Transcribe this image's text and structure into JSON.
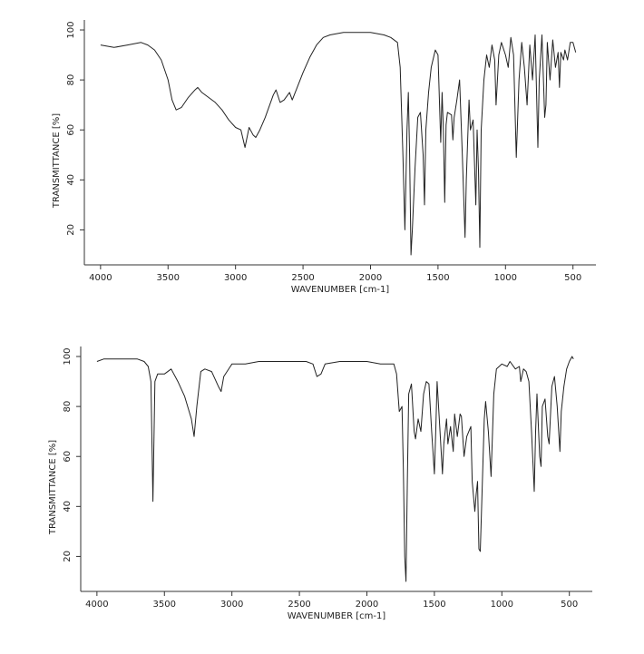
{
  "chart_data": [
    {
      "type": "line",
      "x_label": "WAVENUMBER [cm-1]",
      "y_label": "TRANSMITTANCE [%]",
      "xlim": [
        4120,
        330
      ],
      "ylim": [
        6,
        104
      ],
      "xticks": [
        4000,
        3500,
        3000,
        2500,
        2000,
        1500,
        1000,
        500
      ],
      "yticks": [
        20,
        40,
        60,
        80,
        100
      ],
      "color": "#222222",
      "x": [
        4000,
        3900,
        3800,
        3700,
        3650,
        3600,
        3550,
        3500,
        3470,
        3440,
        3400,
        3350,
        3300,
        3280,
        3250,
        3200,
        3150,
        3100,
        3050,
        3000,
        2960,
        2930,
        2900,
        2870,
        2850,
        2820,
        2780,
        2720,
        2700,
        2670,
        2640,
        2600,
        2580,
        2550,
        2500,
        2450,
        2400,
        2350,
        2300,
        2200,
        2100,
        2000,
        1900,
        1850,
        1800,
        1780,
        1760,
        1745,
        1730,
        1720,
        1710,
        1700,
        1690,
        1670,
        1650,
        1630,
        1610,
        1600,
        1590,
        1570,
        1550,
        1520,
        1500,
        1480,
        1470,
        1460,
        1450,
        1440,
        1430,
        1400,
        1390,
        1380,
        1360,
        1340,
        1320,
        1300,
        1290,
        1270,
        1260,
        1240,
        1220,
        1210,
        1200,
        1190,
        1180,
        1160,
        1140,
        1120,
        1100,
        1080,
        1070,
        1050,
        1030,
        1000,
        980,
        960,
        940,
        920,
        900,
        880,
        860,
        840,
        820,
        800,
        780,
        760,
        750,
        730,
        710,
        700,
        690,
        670,
        650,
        630,
        610,
        600,
        590,
        570,
        560,
        540,
        520,
        500,
        480
      ],
      "values": [
        94,
        93,
        94,
        95,
        94,
        92,
        88,
        80,
        72,
        68,
        69,
        73,
        76,
        77,
        75,
        73,
        71,
        68,
        64,
        61,
        60,
        53,
        61,
        58,
        57,
        60,
        65,
        74,
        76,
        71,
        72,
        75,
        72,
        76,
        83,
        89,
        94,
        97,
        98,
        99,
        99,
        99,
        98,
        97,
        95,
        85,
        50,
        20,
        60,
        75,
        50,
        10,
        20,
        45,
        65,
        67,
        50,
        30,
        60,
        75,
        85,
        92,
        90,
        55,
        75,
        60,
        31,
        62,
        67,
        66,
        56,
        65,
        72,
        80,
        50,
        17,
        40,
        72,
        60,
        64,
        30,
        60,
        44,
        13,
        60,
        80,
        90,
        85,
        94,
        88,
        70,
        90,
        95,
        90,
        85,
        97,
        90,
        49,
        80,
        95,
        85,
        70,
        94,
        80,
        98,
        53,
        80,
        98,
        65,
        70,
        95,
        80,
        96,
        85,
        91,
        77,
        91,
        88,
        92,
        88,
        95,
        95,
        91
      ]
    },
    {
      "type": "line",
      "x_label": "WAVENUMBER [cm-1]",
      "y_label": "TRANSMITTANCE [%]",
      "xlim": [
        4120,
        330
      ],
      "ylim": [
        6,
        104
      ],
      "xticks": [
        4000,
        3500,
        3000,
        2500,
        2000,
        1500,
        1000,
        500
      ],
      "yticks": [
        20,
        40,
        60,
        80,
        100
      ],
      "color": "#222222",
      "x": [
        4000,
        3950,
        3900,
        3800,
        3700,
        3650,
        3620,
        3600,
        3585,
        3570,
        3550,
        3500,
        3450,
        3400,
        3350,
        3300,
        3280,
        3260,
        3230,
        3200,
        3150,
        3100,
        3080,
        3060,
        3000,
        2900,
        2800,
        2700,
        2600,
        2500,
        2450,
        2400,
        2370,
        2340,
        2310,
        2200,
        2100,
        2000,
        1900,
        1800,
        1780,
        1760,
        1740,
        1730,
        1720,
        1710,
        1700,
        1690,
        1670,
        1650,
        1640,
        1620,
        1600,
        1580,
        1560,
        1540,
        1520,
        1500,
        1490,
        1480,
        1460,
        1440,
        1430,
        1410,
        1400,
        1380,
        1360,
        1350,
        1330,
        1310,
        1300,
        1280,
        1260,
        1230,
        1220,
        1200,
        1190,
        1180,
        1175,
        1170,
        1160,
        1150,
        1130,
        1120,
        1100,
        1080,
        1060,
        1040,
        1000,
        960,
        940,
        900,
        870,
        860,
        840,
        820,
        800,
        780,
        760,
        750,
        740,
        720,
        710,
        700,
        680,
        660,
        650,
        630,
        610,
        590,
        570,
        560,
        540,
        520,
        500,
        480,
        470
      ],
      "values": [
        98,
        99,
        99,
        99,
        99,
        98,
        96,
        90,
        42,
        90,
        93,
        93,
        95,
        90,
        84,
        75,
        68,
        80,
        94,
        95,
        94,
        88,
        86,
        92,
        97,
        97,
        98,
        98,
        98,
        98,
        98,
        97,
        92,
        93,
        97,
        98,
        98,
        98,
        97,
        97,
        93,
        78,
        80,
        55,
        20,
        10,
        50,
        85,
        89,
        70,
        67,
        75,
        70,
        85,
        90,
        89,
        70,
        53,
        70,
        90,
        72,
        53,
        65,
        75,
        65,
        72,
        62,
        77,
        68,
        77,
        76,
        60,
        68,
        72,
        50,
        38,
        45,
        50,
        35,
        23,
        22,
        40,
        75,
        82,
        70,
        52,
        85,
        95,
        97,
        96,
        98,
        95,
        96,
        90,
        95,
        94,
        90,
        70,
        46,
        70,
        85,
        60,
        56,
        80,
        83,
        68,
        65,
        88,
        92,
        80,
        62,
        78,
        88,
        95,
        98,
        100,
        99
      ]
    }
  ]
}
